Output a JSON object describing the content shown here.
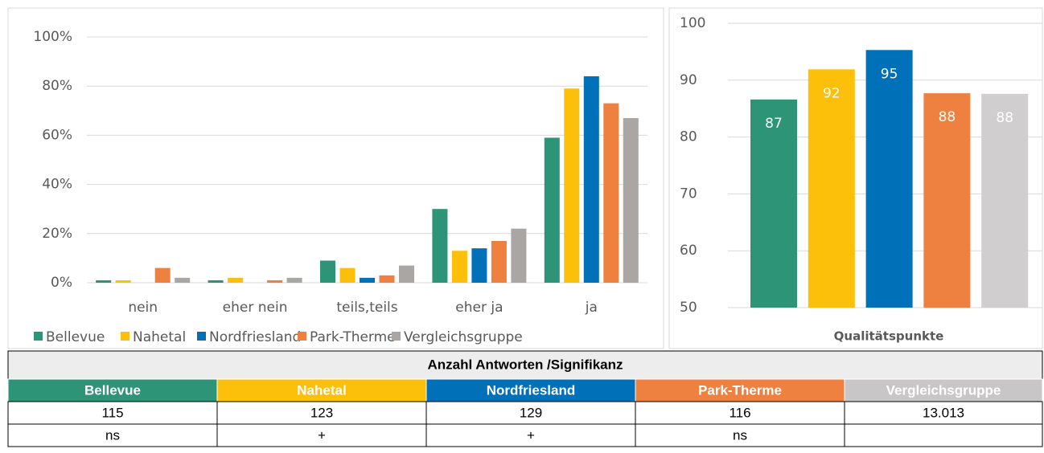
{
  "chart_data": [
    {
      "type": "bar",
      "categories": [
        "nein",
        "eher nein",
        "teils,teils",
        "eher ja",
        "ja"
      ],
      "series": [
        {
          "name": "Bellevue",
          "color": "#2e9478",
          "values": [
            1,
            1,
            9,
            30,
            59
          ]
        },
        {
          "name": "Nahetal",
          "color": "#fcbf0a",
          "values": [
            1,
            2,
            6,
            13,
            79
          ]
        },
        {
          "name": "Nordfriesland",
          "color": "#0070b8",
          "values": [
            0,
            0,
            2,
            14,
            84
          ]
        },
        {
          "name": "Park-Therme",
          "color": "#ee8040",
          "values": [
            6,
            1,
            3,
            17,
            73
          ]
        },
        {
          "name": "Vergleichsgruppe",
          "color": "#a9a6a4",
          "values": [
            2,
            2,
            7,
            22,
            67
          ]
        }
      ],
      "ylim": [
        0,
        100
      ],
      "yticks": [
        {
          "value": 0,
          "label": "0%"
        },
        {
          "value": 20,
          "label": "20%"
        },
        {
          "value": 40,
          "label": "40%"
        },
        {
          "value": 60,
          "label": "60%"
        },
        {
          "value": 80,
          "label": "80%"
        },
        {
          "value": 100,
          "label": "100%"
        }
      ],
      "grid": true,
      "legend": "bottom"
    },
    {
      "type": "bar",
      "xlabel": "Qualitätspunkte",
      "values": [
        86.6,
        91.9,
        95.3,
        87.7,
        87.6
      ],
      "value_labels": [
        "87",
        "92",
        "95",
        "88",
        "88"
      ],
      "colors": [
        "#2e9478",
        "#fcbf0a",
        "#0070b8",
        "#ee8040",
        "#d0cece"
      ],
      "ylim": [
        50,
        100
      ],
      "yticks": [
        50,
        60,
        70,
        80,
        90,
        100
      ],
      "grid": true
    }
  ],
  "table": {
    "title": "Anzahl Antworten /Signifikanz",
    "header": [
      "Bellevue",
      "Nahetal",
      "Nordfriesland",
      "Park-Therme",
      "Vergleichsgruppe"
    ],
    "header_colors": [
      "#2e9478",
      "#fcbf0a",
      "#0070b8",
      "#ee8040",
      "#c8c6c6"
    ],
    "rows": [
      [
        "115",
        "123",
        "129",
        "116",
        "13.013"
      ],
      [
        "ns",
        "+",
        "+",
        "ns"
      ]
    ]
  }
}
